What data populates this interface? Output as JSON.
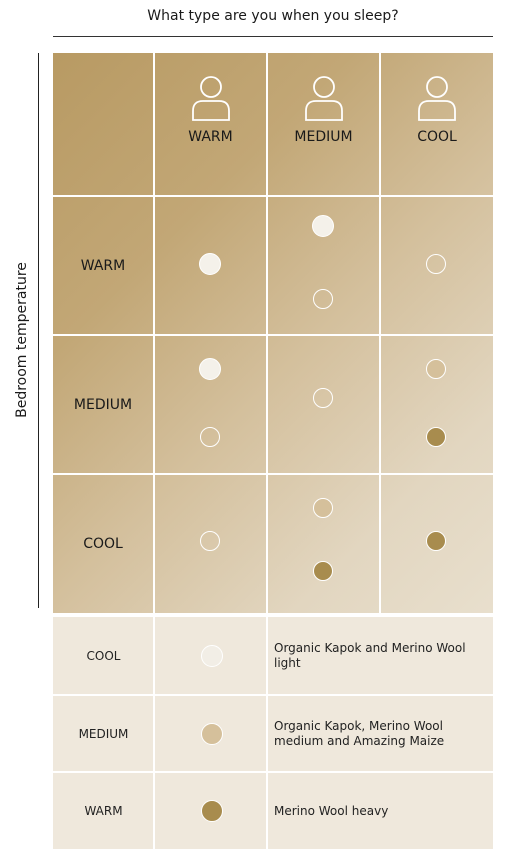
{
  "title": "What type are you when you sleep?",
  "y_axis_label": "Bedroom temperature",
  "columns": [
    {
      "label": "WARM",
      "icon": "person-icon"
    },
    {
      "label": "MEDIUM",
      "icon": "person-icon"
    },
    {
      "label": "COOL",
      "icon": "person-icon"
    }
  ],
  "rows": [
    {
      "label": "WARM"
    },
    {
      "label": "MEDIUM"
    },
    {
      "label": "COOL"
    }
  ],
  "matrix_dots": {
    "WARM": {
      "WARM": [
        "cool"
      ],
      "MEDIUM": [
        "cool",
        "outline"
      ],
      "COOL": [
        "outline"
      ]
    },
    "MEDIUM": {
      "WARM": [
        "cool",
        "outline"
      ],
      "MEDIUM": [
        "outline"
      ],
      "COOL": [
        "medium",
        "warm"
      ]
    },
    "COOL": {
      "WARM": [
        "outline"
      ],
      "MEDIUM": [
        "medium",
        "warm"
      ],
      "COOL": [
        "warm"
      ]
    }
  },
  "legend": [
    {
      "name": "COOL",
      "color": "#f2eee6",
      "text": "Organic Kapok and Merino Wool light"
    },
    {
      "name": "MEDIUM",
      "color": "#d5c09b",
      "text": "Organic Kapok, Merino Wool medium and Amazing Maize"
    },
    {
      "name": "WARM",
      "color": "#a88c4e",
      "text": "Merino Wool heavy"
    }
  ],
  "colors": {
    "cool_dot": "#f4f1ea",
    "medium_dot": "#d5c09b",
    "warm_dot": "#a88c4e",
    "grid_lines": "#ffffff",
    "legend_bg": "#efe8dc"
  }
}
